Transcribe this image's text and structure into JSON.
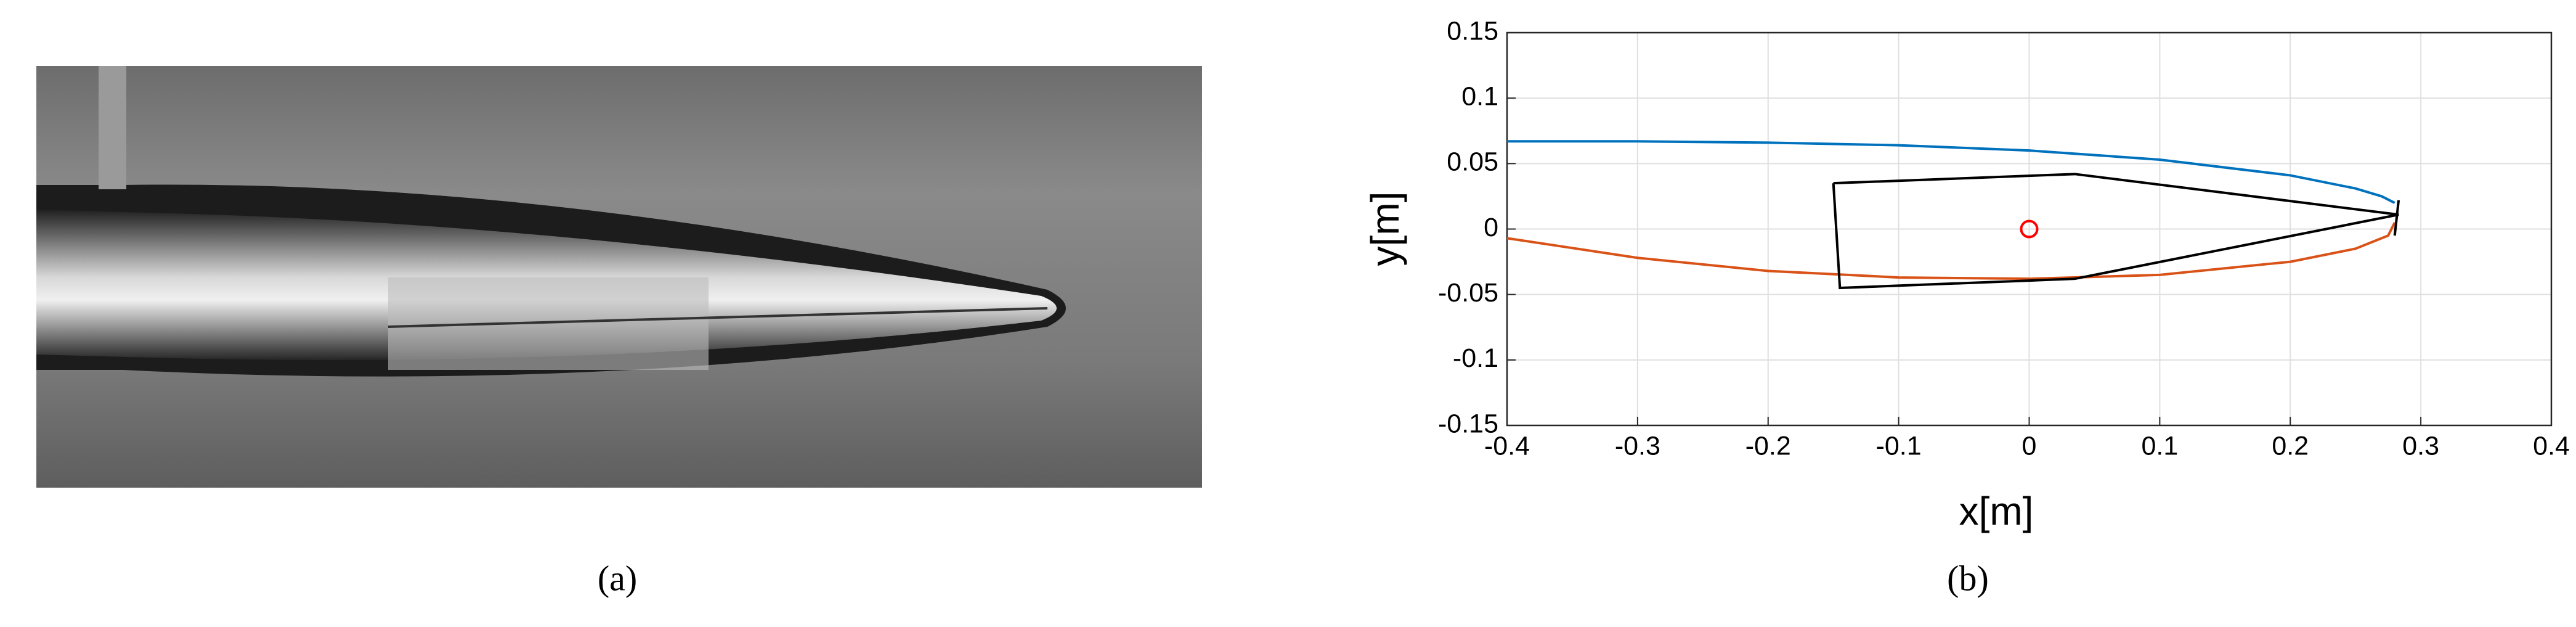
{
  "captions": [
    "(a)",
    "(b)"
  ],
  "chart_data": {
    "type": "line",
    "xlabel": "x[m]",
    "ylabel": "y[m]",
    "xlim": [
      -0.4,
      0.4
    ],
    "xticks": [
      -0.4,
      -0.3,
      -0.2,
      -0.1,
      0,
      0.1,
      0.2,
      0.3,
      0.4
    ],
    "ylim": [
      -0.15,
      0.15
    ],
    "yticks": [
      -0.15,
      -0.1,
      -0.05,
      0,
      0.05,
      0.1,
      0.15
    ],
    "grid": true,
    "series": [
      {
        "color": "#0072bd",
        "x": [
          -0.4,
          -0.3,
          -0.2,
          -0.1,
          0,
          0.1,
          0.2,
          0.25,
          0.27,
          0.28
        ],
        "values": [
          0.067,
          0.067,
          0.066,
          0.064,
          0.06,
          0.053,
          0.041,
          0.031,
          0.025,
          0.02
        ]
      },
      {
        "color": "#d95319",
        "x": [
          -0.4,
          -0.3,
          -0.2,
          -0.1,
          0,
          0.1,
          0.2,
          0.25,
          0.275,
          0.28
        ],
        "values": [
          -0.007,
          -0.022,
          -0.032,
          -0.037,
          -0.038,
          -0.035,
          -0.025,
          -0.015,
          -0.005,
          0.005
        ]
      },
      {
        "color": "#000000",
        "x": [
          -0.15,
          0.035,
          0.283,
          0.035,
          -0.145,
          -0.15,
          null,
          0.283,
          0.28
        ],
        "values": [
          0.035,
          0.042,
          0.011,
          -0.038,
          -0.045,
          0.035,
          null,
          0.022,
          -0.005
        ]
      },
      {
        "color": "#ff0000",
        "marker": "circle",
        "x": [
          0
        ],
        "values": [
          0
        ]
      }
    ]
  }
}
